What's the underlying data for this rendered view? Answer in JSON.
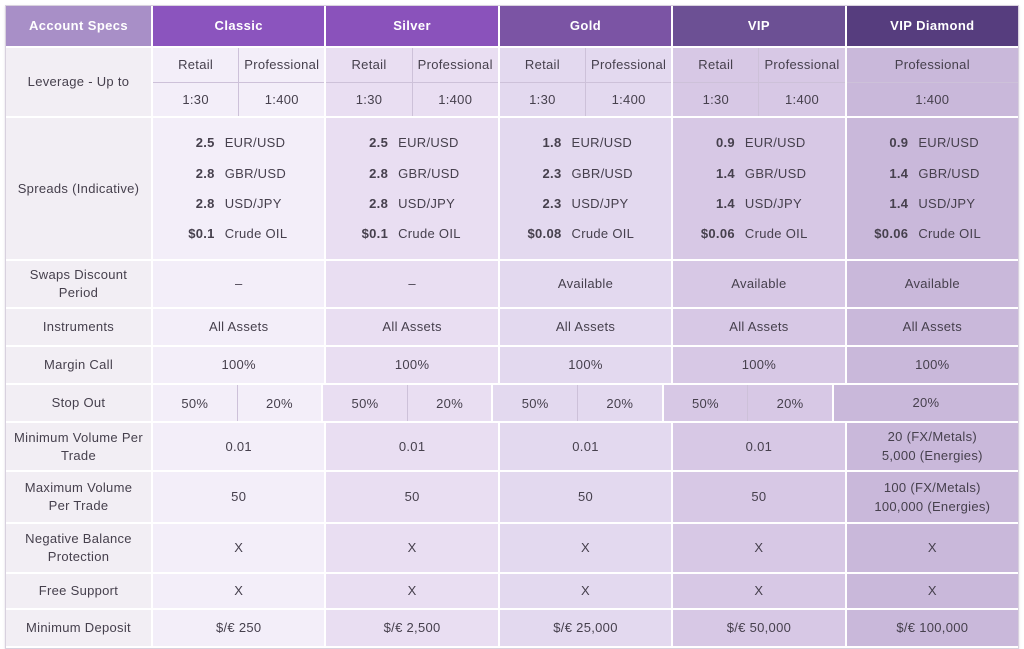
{
  "colors": {
    "header_specs_bg": "#a88fc7",
    "header_classic_bg": "#8b54be",
    "header_silver_bg": "#8a52bb",
    "header_gold_bg": "#7b54a4",
    "header_vip_bg": "#6c5094",
    "header_diamond_bg": "#563d7e",
    "header_text": "#ffffff",
    "col_label_bg": "#f2eef4",
    "col_classic_bg": "#f3eef9",
    "col_silver_bg": "#e9def2",
    "col_gold_bg": "#e3d9ef",
    "col_vip_bg": "#d7c8e5",
    "col_diamond_bg": "#c9b8da",
    "text": "#46404d",
    "divider": "#cdc1d9"
  },
  "header": {
    "specs_label": "Account Specs",
    "plans": [
      "Classic",
      "Silver",
      "Gold",
      "VIP",
      "VIP Diamond"
    ]
  },
  "rows": {
    "leverage": {
      "label": "Leverage - Up to",
      "sub_headers": [
        "Retail",
        "Professional"
      ],
      "retail_value": "1:30",
      "professional_value": "1:400",
      "diamond_sub_header": "Professional",
      "diamond_value": "1:400"
    },
    "spreads": {
      "label": "Spreads (Indicative)",
      "pairs": [
        "EUR/USD",
        "GBR/USD",
        "USD/JPY",
        "Crude OIL"
      ],
      "values": {
        "classic": [
          "2.5",
          "2.8",
          "2.8",
          "$0.1"
        ],
        "silver": [
          "2.5",
          "2.8",
          "2.8",
          "$0.1"
        ],
        "gold": [
          "1.8",
          "2.3",
          "2.3",
          "$0.08"
        ],
        "vip": [
          "0.9",
          "1.4",
          "1.4",
          "$0.06"
        ],
        "diamond": [
          "0.9",
          "1.4",
          "1.4",
          "$0.06"
        ]
      }
    },
    "swaps": {
      "label": "Swaps Discount Period",
      "values": [
        "–",
        "–",
        "Available",
        "Available",
        "Available"
      ]
    },
    "instruments": {
      "label": "Instruments",
      "values": [
        "All Assets",
        "All Assets",
        "All Assets",
        "All Assets",
        "All Assets"
      ]
    },
    "margin_call": {
      "label": "Margin Call",
      "values": [
        "100%",
        "100%",
        "100%",
        "100%",
        "100%"
      ]
    },
    "stop_out": {
      "label": "Stop Out",
      "retail_value": "50%",
      "professional_value": "20%",
      "diamond_value": "20%"
    },
    "min_volume": {
      "label": "Minimum Volume Per Trade",
      "value": "0.01",
      "diamond": [
        "20 (FX/Metals)",
        "5,000 (Energies)"
      ]
    },
    "max_volume": {
      "label": "Maximum Volume Per Trade",
      "value": "50",
      "diamond": [
        "100 (FX/Metals)",
        "100,000 (Energies)"
      ]
    },
    "negative_balance": {
      "label": "Negative Balance Protection",
      "values": [
        "X",
        "X",
        "X",
        "X",
        "X"
      ]
    },
    "free_support": {
      "label": "Free Support",
      "values": [
        "X",
        "X",
        "X",
        "X",
        "X"
      ]
    },
    "min_deposit": {
      "label": "Minimum Deposit",
      "values": [
        "$/€ 250",
        "$/€ 2,500",
        "$/€ 25,000",
        "$/€ 50,000",
        "$/€ 100,000"
      ]
    }
  }
}
